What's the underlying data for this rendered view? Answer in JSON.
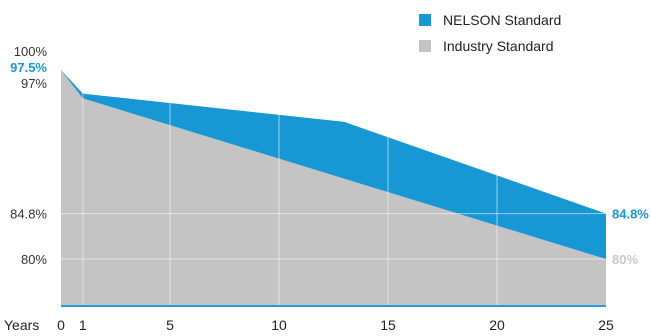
{
  "chart_data": {
    "type": "area",
    "xlabel": "Years",
    "x_ticks": [
      0,
      1,
      5,
      10,
      15,
      20,
      25
    ],
    "xlim": [
      0,
      25
    ],
    "ylim": [
      77,
      100
    ],
    "grid": true,
    "legend_position": "top-right",
    "series": [
      {
        "name": "NELSON Standard",
        "color": "#1797d4",
        "points": [
          [
            0,
            100
          ],
          [
            1,
            97.5
          ],
          [
            13,
            94.5
          ],
          [
            25,
            84.8
          ]
        ]
      },
      {
        "name": "Industry Standard",
        "color": "#c4c4c4",
        "points": [
          [
            0,
            100
          ],
          [
            1,
            97
          ],
          [
            25,
            80
          ]
        ]
      }
    ],
    "y_labels": [
      {
        "text": "100%",
        "value": 100,
        "style": "gray"
      },
      {
        "text": "97.5%",
        "value": 97.5,
        "style": "blue"
      },
      {
        "text": "97%",
        "value": 97,
        "style": "gray"
      },
      {
        "text": "84.8%",
        "value": 84.8,
        "style": "gray"
      },
      {
        "text": "80%",
        "value": 80,
        "style": "gray"
      }
    ],
    "end_labels": [
      {
        "text": "84.8%",
        "value": 84.8,
        "style": "blue"
      },
      {
        "text": "80%",
        "value": 80,
        "style": "light"
      }
    ]
  }
}
